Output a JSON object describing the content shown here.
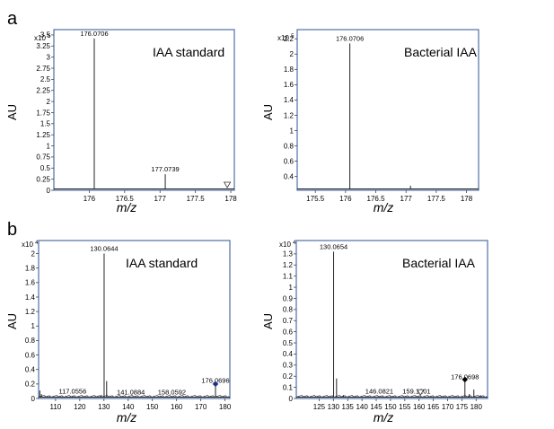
{
  "figure": {
    "panel_a_letter": "a",
    "panel_b_letter": "b"
  },
  "colors": {
    "frame": "#4f6fa8",
    "line": "#222222",
    "marker_diamond_blue": "#1c2f8c",
    "marker_diamond_black": "#000000"
  },
  "chart_data": [
    {
      "type": "line",
      "panel": "a",
      "title": "IAA standard",
      "ylabel": "AU",
      "xlabel": "m/z",
      "y_multiplier_base": "x10",
      "y_multiplier_exp": "5",
      "xlim": [
        175.5,
        178.05
      ],
      "ylim": [
        0,
        3.62
      ],
      "x_ticks": [
        176,
        176.5,
        177,
        177.5,
        178
      ],
      "x_tick_labels": [
        "176",
        "176.5",
        "177",
        "177.5",
        "178"
      ],
      "y_ticks": [
        0,
        0.25,
        0.5,
        0.75,
        1,
        1.25,
        1.5,
        1.75,
        2,
        2.25,
        2.5,
        2.75,
        3,
        3.25,
        3.5
      ],
      "y_tick_labels": [
        "0",
        "0.25",
        "0.5",
        "0.75",
        "1",
        "1.25",
        "1.5",
        "1.75",
        "2",
        "2.25",
        "2.5",
        "2.75",
        "3",
        "3.25",
        "3.5"
      ],
      "peaks": [
        {
          "x": 176.0706,
          "y": 3.42,
          "label": "176.0706"
        },
        {
          "x": 177.0739,
          "y": 0.36,
          "label": "177.0739"
        },
        {
          "x": 177.95,
          "y": 0.03,
          "label": ""
        }
      ],
      "markers": [
        {
          "x": 177.95,
          "y": 0.06,
          "shape": "triangle-down"
        }
      ]
    },
    {
      "type": "line",
      "panel": "a",
      "title": "Bacterial IAA",
      "ylabel": "AU",
      "xlabel": "m/z",
      "y_multiplier_base": "x10",
      "y_multiplier_exp": "5",
      "xlim": [
        175.2,
        178.2
      ],
      "ylim": [
        0.22,
        2.32
      ],
      "x_ticks": [
        175.5,
        176,
        176.5,
        177,
        177.5,
        178
      ],
      "x_tick_labels": [
        "175.5",
        "176",
        "176.5",
        "177",
        "177.5",
        "178"
      ],
      "y_ticks": [
        0.4,
        0.6,
        0.8,
        1,
        1.2,
        1.4,
        1.6,
        1.8,
        2,
        2.2
      ],
      "y_tick_labels": [
        "0.4",
        "0.6",
        "0.8",
        "1",
        "1.2",
        "1.4",
        "1.6",
        "1.8",
        "2",
        "2.2"
      ],
      "peaks": [
        {
          "x": 176.0706,
          "y": 2.14,
          "label": "176.0706"
        },
        {
          "x": 177.0739,
          "y": 0.28,
          "label": ""
        }
      ],
      "markers": []
    },
    {
      "type": "line",
      "panel": "b",
      "title": "IAA standard",
      "ylabel": "AU",
      "xlabel": "m/z",
      "y_multiplier_base": "x10",
      "y_multiplier_exp": "4",
      "xlim": [
        103,
        182
      ],
      "ylim": [
        0,
        2.18
      ],
      "x_ticks": [
        110,
        120,
        130,
        140,
        150,
        160,
        170,
        180
      ],
      "x_tick_labels": [
        "110",
        "120",
        "130",
        "140",
        "150",
        "160",
        "170",
        "180"
      ],
      "y_ticks": [
        0,
        0.2,
        0.4,
        0.6,
        0.8,
        1,
        1.2,
        1.4,
        1.6,
        1.8,
        2
      ],
      "y_tick_labels": [
        "0",
        "0.2",
        "0.4",
        "0.6",
        "0.8",
        "1",
        "1.2",
        "1.4",
        "1.6",
        "1.8",
        "2"
      ],
      "peaks": [
        {
          "x": 103.5,
          "y": 0.11,
          "label": ""
        },
        {
          "x": 104.2,
          "y": 0.06,
          "label": ""
        },
        {
          "x": 117.0556,
          "y": 0.03,
          "label": "117.0556"
        },
        {
          "x": 128.9,
          "y": 0.05,
          "label": ""
        },
        {
          "x": 130.0644,
          "y": 2.0,
          "label": "130.0644"
        },
        {
          "x": 131.1,
          "y": 0.24,
          "label": ""
        },
        {
          "x": 141.0884,
          "y": 0.02,
          "label": "141.0884"
        },
        {
          "x": 158.0592,
          "y": 0.02,
          "label": "158.0592"
        },
        {
          "x": 176.0696,
          "y": 0.18,
          "label": "176.0696"
        }
      ],
      "markers": [
        {
          "x": 176.0696,
          "y": 0.2,
          "shape": "diamond",
          "color": "#1c2f8c"
        }
      ]
    },
    {
      "type": "line",
      "panel": "b",
      "title": "Bacterial IAA",
      "ylabel": "AU",
      "xlabel": "m/z",
      "y_multiplier_base": "x10",
      "y_multiplier_exp": "4",
      "xlim": [
        117,
        184
      ],
      "ylim": [
        0,
        1.42
      ],
      "x_ticks": [
        125,
        130,
        135,
        140,
        145,
        150,
        155,
        160,
        165,
        170,
        175,
        180
      ],
      "x_tick_labels": [
        "125",
        "130",
        "135",
        "140",
        "145",
        "150",
        "155",
        "160",
        "165",
        "170",
        "175",
        "180"
      ],
      "y_ticks": [
        0,
        0.1,
        0.2,
        0.3,
        0.4,
        0.5,
        0.6,
        0.7,
        0.8,
        0.9,
        1,
        1.1,
        1.2,
        1.3
      ],
      "y_tick_labels": [
        "0",
        "0.1",
        "0.2",
        "0.3",
        "0.4",
        "0.5",
        "0.6",
        "0.7",
        "0.8",
        "0.9",
        "1",
        "1.1",
        "1.2",
        "1.3"
      ],
      "peaks": [
        {
          "x": 130.0654,
          "y": 1.32,
          "label": "130.0654"
        },
        {
          "x": 131.1,
          "y": 0.18,
          "label": ""
        },
        {
          "x": 133.5,
          "y": 0.03,
          "label": ""
        },
        {
          "x": 146.0821,
          "y": 0.02,
          "label": "146.0821"
        },
        {
          "x": 159.1201,
          "y": 0.02,
          "label": "159.1201"
        },
        {
          "x": 176.0698,
          "y": 0.15,
          "label": "176.0698"
        },
        {
          "x": 177.6,
          "y": 0.04,
          "label": ""
        },
        {
          "x": 179.2,
          "y": 0.08,
          "label": ""
        },
        {
          "x": 181.5,
          "y": 0.03,
          "label": ""
        }
      ],
      "markers": [
        {
          "x": 160.5,
          "y": 0.03,
          "shape": "triangle-down"
        },
        {
          "x": 176.0698,
          "y": 0.17,
          "shape": "diamond",
          "color": "#000000"
        }
      ]
    }
  ]
}
